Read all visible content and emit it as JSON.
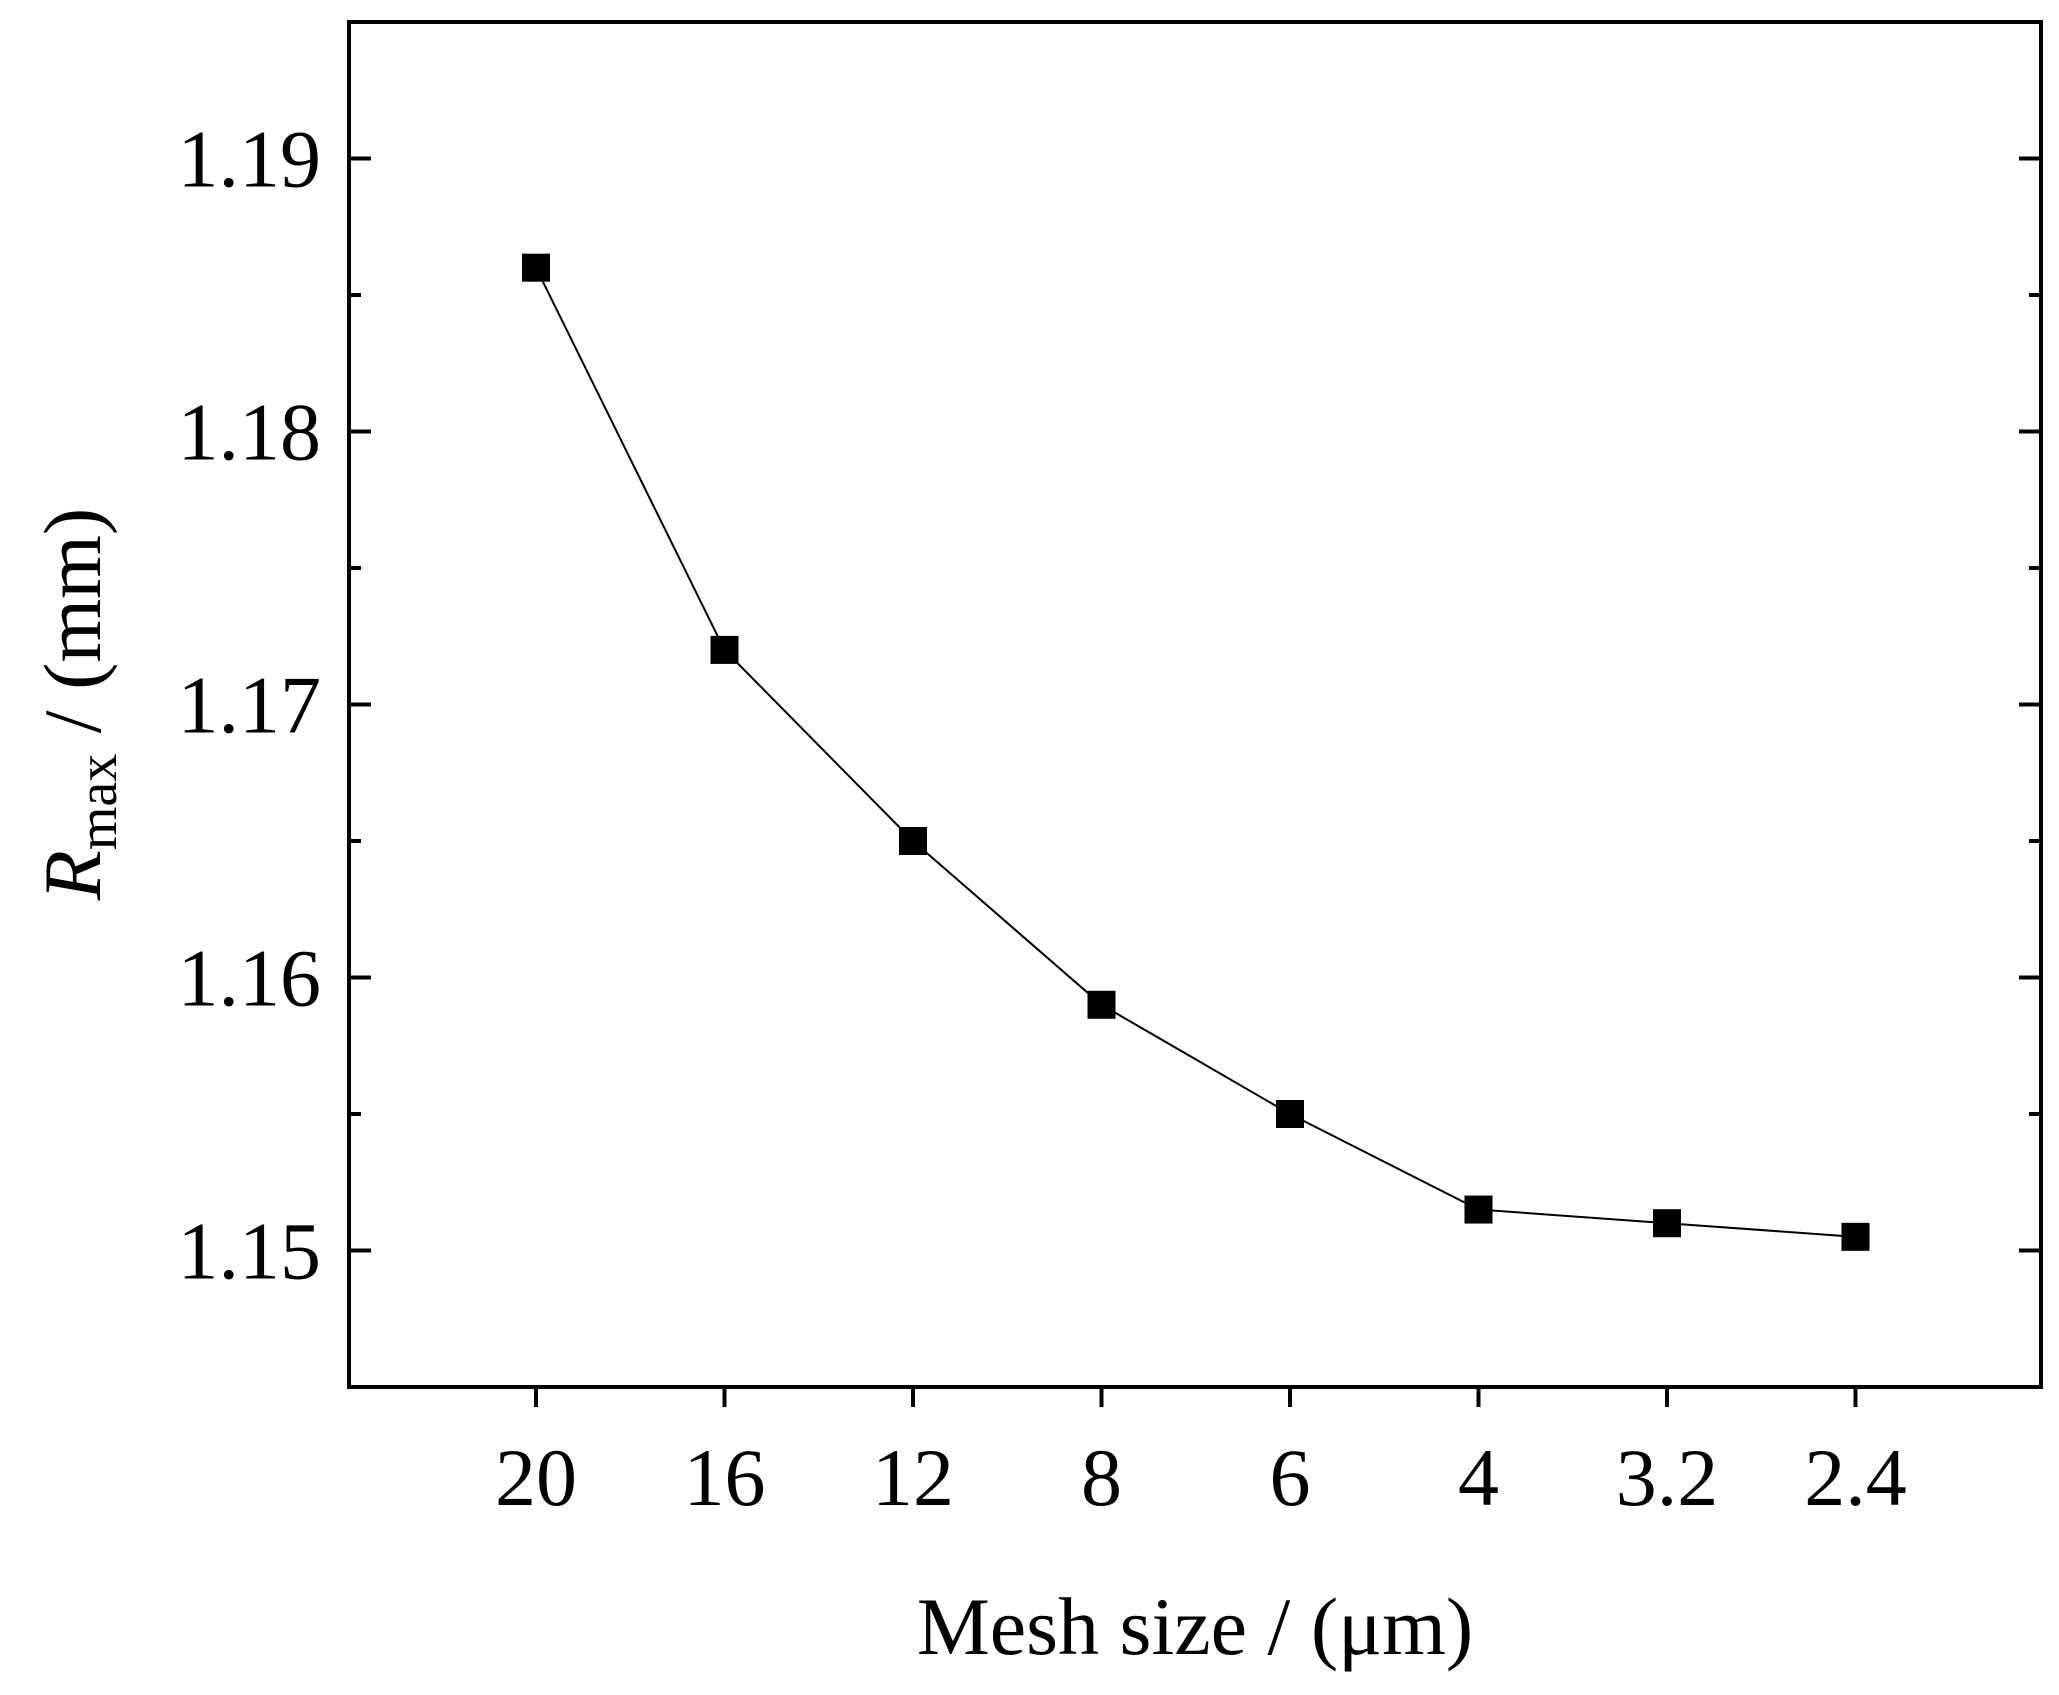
{
  "chart_data": {
    "type": "line",
    "title": "",
    "xlabel": "Mesh size / (μm)",
    "ylabel": {
      "symbol": "R",
      "subscript": "max",
      "unit": " / (mm)"
    },
    "categories": [
      "20",
      "16",
      "12",
      "8",
      "6",
      "4",
      "3.2",
      "2.4"
    ],
    "series": [
      {
        "values": [
          1.186,
          1.172,
          1.165,
          1.159,
          1.155,
          1.1515,
          1.151,
          1.1505
        ],
        "color": "#000000",
        "marker": "square"
      }
    ],
    "ylim": [
      1.145,
      1.195
    ],
    "yticks": [
      1.15,
      1.16,
      1.17,
      1.18,
      1.19
    ],
    "ytick_labels": [
      "1.15",
      "1.16",
      "1.17",
      "1.18",
      "1.19"
    ],
    "grid": false,
    "legend": "none"
  }
}
